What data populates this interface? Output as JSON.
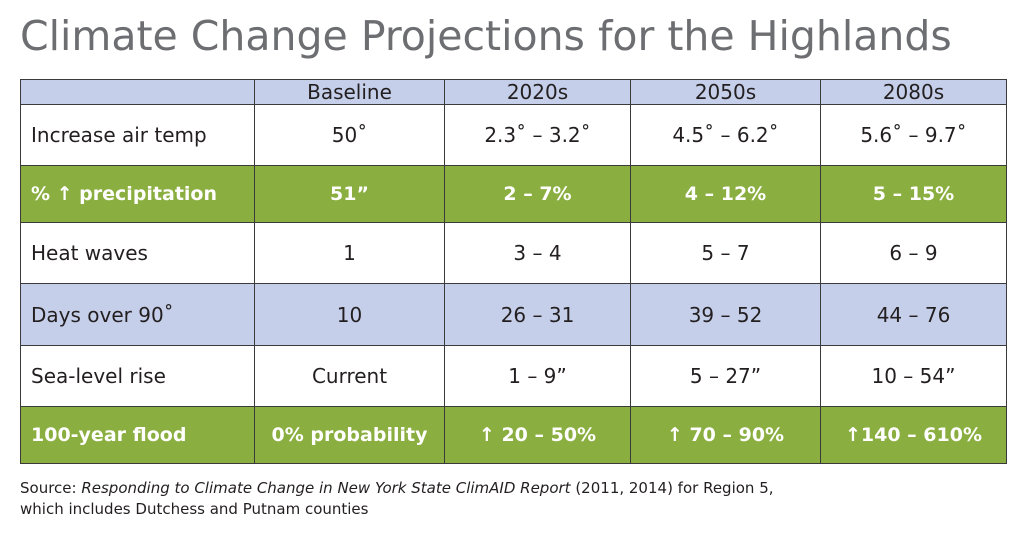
{
  "chart_data": {
    "type": "table",
    "title": "Climate Change Projections for the Highlands",
    "columns": [
      "",
      "Baseline",
      "2020s",
      "2050s",
      "2080s"
    ],
    "rows": [
      {
        "label": "Increase air temp",
        "style": "white",
        "cells": [
          "50˚",
          "2.3˚ – 3.2˚",
          "4.5˚ – 6.2˚",
          "5.6˚ – 9.7˚"
        ]
      },
      {
        "label": "% ↑ precipitation",
        "style": "green",
        "cells": [
          "51”",
          "2 – 7%",
          "4 – 12%",
          "5 – 15%"
        ]
      },
      {
        "label": "Heat waves",
        "style": "white",
        "cells": [
          "1",
          "3 – 4",
          "5 – 7",
          "6 – 9"
        ]
      },
      {
        "label": "Days over 90˚",
        "style": "blue",
        "cells": [
          "10",
          "26 – 31",
          "39 – 52",
          "44 – 76"
        ]
      },
      {
        "label": "Sea-level rise",
        "style": "white",
        "cells": [
          "Current",
          "1 – 9”",
          "5 – 27”",
          "10 – 54”"
        ]
      },
      {
        "label": "100-year flood",
        "style": "green",
        "cells": [
          "0% probability",
          "↑ 20 – 50%",
          "↑ 70 – 90%",
          "↑140 – 610%"
        ]
      }
    ],
    "source": {
      "prefix": "Source: ",
      "report": "Responding to Climate Change in New York State ClimAID Report",
      "suffix": " (2011, 2014) for Region 5,",
      "line2": "which includes Dutchess and Putnam counties"
    }
  },
  "colors": {
    "header_blue": "#c5cfe9",
    "accent_green": "#8aae3f",
    "title_gray": "#6d6e71"
  }
}
